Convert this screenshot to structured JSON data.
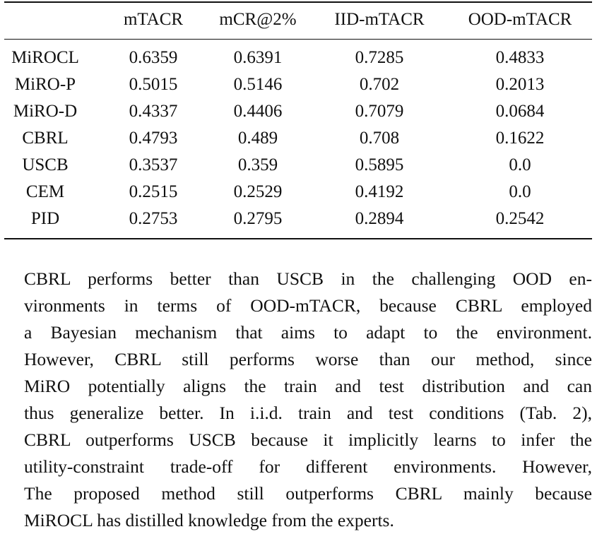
{
  "table": {
    "headers": [
      "",
      "mTACR",
      "mCR@2%",
      "IID-mTACR",
      "OOD-mTACR"
    ],
    "rows": [
      {
        "method": "MiROCL",
        "values": [
          "0.6359",
          "0.6391",
          "0.7285",
          "0.4833"
        ]
      },
      {
        "method": "MiRO-P",
        "values": [
          "0.5015",
          "0.5146",
          "0.702",
          "0.2013"
        ]
      },
      {
        "method": "MiRO-D",
        "values": [
          "0.4337",
          "0.4406",
          "0.7079",
          "0.0684"
        ]
      },
      {
        "method": "CBRL",
        "values": [
          "0.4793",
          "0.489",
          "0.708",
          "0.1622"
        ]
      },
      {
        "method": "USCB",
        "values": [
          "0.3537",
          "0.359",
          "0.5895",
          "0.0"
        ]
      },
      {
        "method": "CEM",
        "values": [
          "0.2515",
          "0.2529",
          "0.4192",
          "0.0"
        ]
      },
      {
        "method": "PID",
        "values": [
          "0.2753",
          "0.2795",
          "0.2894",
          "0.2542"
        ]
      }
    ]
  },
  "paragraph": {
    "lines": [
      "CBRL performs better than USCB in the challenging OOD en-",
      "vironments in terms of OOD-mTACR, because CBRL employed",
      "a Bayesian mechanism that aims to adapt to the environment.",
      "However, CBRL still performs worse than our method, since",
      "MiRO potentially aligns the train and test distribution and can",
      "thus generalize better. In i.i.d. train and test conditions (Tab. 2),",
      "CBRL outperforms USCB because it implicitly learns to infer the",
      "utility-constraint trade-off for different environments. However,",
      "The proposed method still outperforms CBRL mainly because",
      "MiROCL has distilled knowledge from the experts."
    ]
  }
}
